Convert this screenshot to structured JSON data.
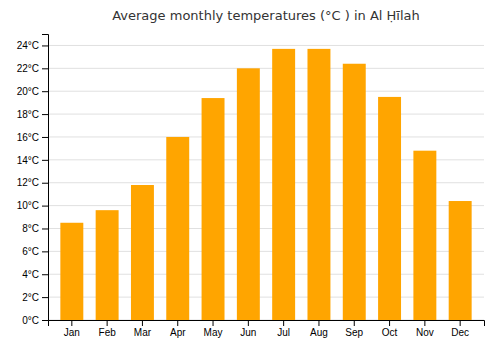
{
  "chart_data": {
    "type": "bar",
    "title": "Average monthly temperatures (°C ) in Al Ḥīlah",
    "categories": [
      "Jan",
      "Feb",
      "Mar",
      "Apr",
      "May",
      "Jun",
      "Jul",
      "Aug",
      "Sep",
      "Oct",
      "Nov",
      "Dec"
    ],
    "values": [
      8.5,
      9.6,
      11.8,
      16.0,
      19.4,
      22.0,
      23.7,
      23.7,
      22.4,
      19.5,
      14.8,
      10.4
    ],
    "color": "#FFA500",
    "ylim": [
      0,
      25
    ],
    "yticks": [
      {
        "value": 0,
        "label": "0°C"
      },
      {
        "value": 2,
        "label": "2°C"
      },
      {
        "value": 4,
        "label": "4°C"
      },
      {
        "value": 6,
        "label": "6°C"
      },
      {
        "value": 8,
        "label": "8°C"
      },
      {
        "value": 10,
        "label": "10°C"
      },
      {
        "value": 12,
        "label": "12°C"
      },
      {
        "value": 14,
        "label": "14°C"
      },
      {
        "value": 16,
        "label": "16°C"
      },
      {
        "value": 18,
        "label": "18°C"
      },
      {
        "value": 20,
        "label": "20°C"
      },
      {
        "value": 22,
        "label": "22°C"
      },
      {
        "value": 24,
        "label": "24°C"
      }
    ],
    "grid": true
  }
}
